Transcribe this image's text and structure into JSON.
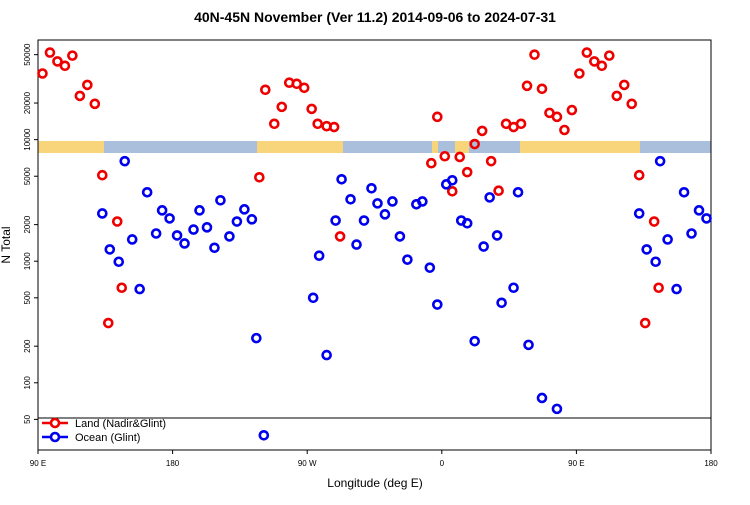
{
  "chart_data": {
    "type": "scatter",
    "title": "40N-45N November (Ver 11.2)   2014-09-06 to 2024-07-31",
    "x_label": "Longitude (deg E)",
    "y_label": "N Total",
    "xlim": [
      0,
      450
    ],
    "xticks": [
      {
        "value": 0,
        "label": "90 E"
      },
      {
        "value": 90,
        "label": "180"
      },
      {
        "value": 180,
        "label": "90 W"
      },
      {
        "value": 270,
        "label": "0"
      },
      {
        "value": 360,
        "label": "90 E"
      },
      {
        "value": 450,
        "label": "180"
      }
    ],
    "ylim": [
      28,
      66000
    ],
    "log_y": true,
    "yticks": [
      50,
      100,
      200,
      500,
      1000,
      2000,
      5000,
      10000,
      20000,
      50000
    ],
    "legend": "bottom-left",
    "series": [
      {
        "name": "Land (Nadir&Glint)",
        "color": "#ee0000",
        "x": [
          3,
          8,
          13,
          18,
          23,
          28,
          33,
          38,
          43,
          47,
          53,
          56,
          148,
          152,
          158,
          163,
          168,
          173,
          178,
          183,
          187,
          193,
          198,
          202,
          263,
          267,
          272,
          277,
          282,
          287,
          292,
          297,
          303,
          308,
          313,
          318,
          323,
          327,
          332,
          337,
          342,
          347,
          352,
          357,
          362,
          367,
          372,
          377,
          382,
          387,
          392,
          397,
          402,
          406,
          412,
          415
        ],
        "values": [
          35000,
          52000,
          44000,
          40500,
          49100,
          22900,
          28200,
          19700,
          5100,
          310,
          2120,
          605,
          4900,
          25700,
          13500,
          18600,
          29400,
          28800,
          26700,
          17900,
          13500,
          12900,
          12700,
          1600,
          6400,
          15400,
          7300,
          3760,
          7200,
          5400,
          9200,
          11800,
          6650,
          3800,
          13500,
          12700,
          13500,
          27700,
          50000,
          26200,
          16600,
          15400,
          12000,
          17500,
          35000,
          52000,
          44000,
          40500,
          49100,
          22900,
          28200,
          19700,
          5100,
          310,
          2120,
          605
        ]
      },
      {
        "name": "Ocean (Glint)",
        "color": "#0000ee",
        "x": [
          43,
          48,
          54,
          58,
          63,
          68,
          73,
          79,
          83,
          88,
          93,
          98,
          104,
          108,
          113,
          118,
          122,
          128,
          133,
          138,
          143,
          146,
          151,
          184,
          188,
          193,
          199,
          203,
          209,
          213,
          218,
          223,
          227,
          232,
          237,
          242,
          247,
          253,
          257,
          262,
          267,
          273,
          277,
          283,
          287,
          292,
          298,
          302,
          307,
          310,
          318,
          321,
          328,
          337,
          347,
          402,
          407,
          413,
          416,
          421,
          427,
          432,
          437,
          442,
          447
        ],
        "values": [
          2470,
          1250,
          990,
          6650,
          1510,
          590,
          3690,
          1690,
          2620,
          2250,
          1630,
          1400,
          1820,
          2620,
          1900,
          1290,
          3170,
          1600,
          2120,
          2670,
          2210,
          233,
          37,
          500,
          1110,
          169,
          2160,
          4720,
          3230,
          1370,
          2160,
          3980,
          2990,
          2430,
          3100,
          1600,
          1030,
          2940,
          3100,
          885,
          440,
          4290,
          4630,
          2160,
          2050,
          220,
          1320,
          3350,
          1630,
          455,
          605,
          3690,
          205,
          75,
          61,
          2470,
          1250,
          990,
          6650,
          1510,
          590,
          3690,
          1690,
          2620,
          2250
        ]
      }
    ]
  }
}
